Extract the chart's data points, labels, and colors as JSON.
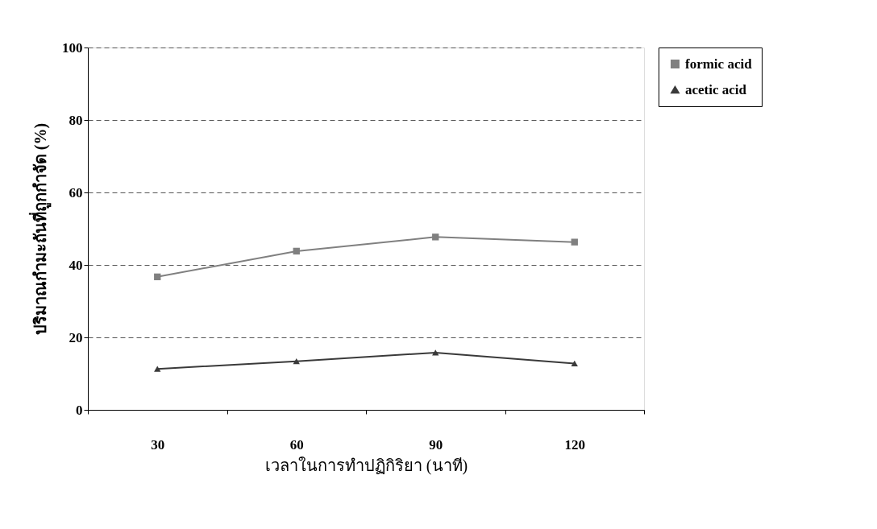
{
  "chart_data": {
    "type": "line",
    "xlabel": "เวลาในการทำปฏิกิริยา (นาที)",
    "ylabel": "ปริมาณกำมะถันที่ถูกกำจัด (%)",
    "categories": [
      "30",
      "60",
      "90",
      "120"
    ],
    "series": [
      {
        "name": "formic acid",
        "color": "#808080",
        "marker": "square",
        "values": [
          36.7,
          43.8,
          47.7,
          46.3
        ]
      },
      {
        "name": "acetic acid",
        "color": "#3a3a3a",
        "marker": "triangle",
        "values": [
          11.3,
          13.4,
          15.8,
          12.8
        ]
      }
    ],
    "ylim": [
      0,
      100
    ],
    "yticks": [
      0,
      20,
      40,
      60,
      80,
      100
    ],
    "grid": "y",
    "legend": "top right",
    "line_style": "solid"
  }
}
